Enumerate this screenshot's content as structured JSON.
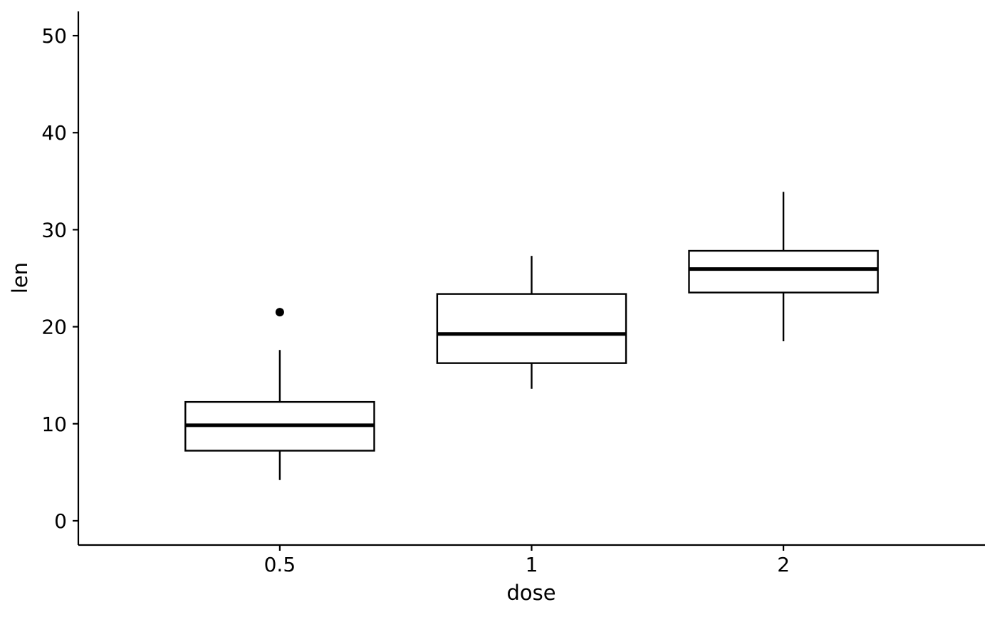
{
  "chart_data": {
    "type": "boxplot",
    "title": "",
    "xlabel": "dose",
    "ylabel": "len",
    "categories": [
      "0.5",
      "1",
      "2"
    ],
    "ylim": [
      -2.5,
      52.5
    ],
    "yticks": [
      0,
      10,
      20,
      30,
      40,
      50
    ],
    "grid": false,
    "legend": "none",
    "boxes": [
      {
        "category": "0.5",
        "whisker_low": 4.2,
        "q1": 7.225,
        "median": 9.85,
        "q3": 12.25,
        "whisker_high": 17.6,
        "outliers": [
          21.5
        ]
      },
      {
        "category": "1",
        "whisker_low": 13.6,
        "q1": 16.25,
        "median": 19.25,
        "q3": 23.375,
        "whisker_high": 27.3,
        "outliers": []
      },
      {
        "category": "2",
        "whisker_low": 18.5,
        "q1": 23.525,
        "median": 25.95,
        "q3": 27.825,
        "whisker_high": 33.9,
        "outliers": []
      }
    ],
    "colors": {
      "stroke": "#000000",
      "fill": "#ffffff"
    }
  }
}
